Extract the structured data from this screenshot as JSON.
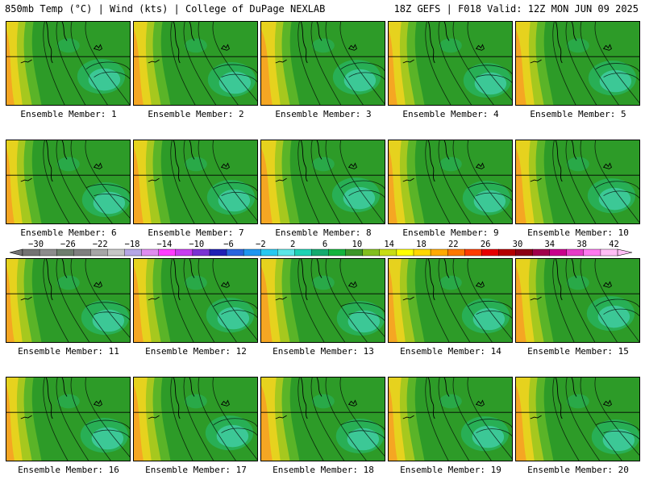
{
  "header": {
    "left": "850mb Temp (°C) | Wind (kts) | College of DuPage NEXLAB",
    "right": "18Z GEFS | F018 Valid: 12Z MON JUN 09 2025"
  },
  "members": [
    "Ensemble Member: 1",
    "Ensemble Member: 2",
    "Ensemble Member: 3",
    "Ensemble Member: 4",
    "Ensemble Member: 5",
    "Ensemble Member: 6",
    "Ensemble Member: 7",
    "Ensemble Member: 8",
    "Ensemble Member: 9",
    "Ensemble Member: 10",
    "Ensemble Member: 11",
    "Ensemble Member: 12",
    "Ensemble Member: 13",
    "Ensemble Member: 14",
    "Ensemble Member: 15",
    "Ensemble Member: 16",
    "Ensemble Member: 17",
    "Ensemble Member: 18",
    "Ensemble Member: 19",
    "Ensemble Member: 20"
  ],
  "colorbar": {
    "labels": [
      "-30",
      "-26",
      "-22",
      "-18",
      "-14",
      "-10",
      "-6",
      "-2",
      "2",
      "6",
      "10",
      "14",
      "18",
      "22",
      "26",
      "30",
      "34",
      "38",
      "42"
    ],
    "colors": [
      "#737373",
      "#8c8c8c",
      "#6e7e6e",
      "#7f7f7f",
      "#a6a6a6",
      "#c6c6c6",
      "#b5a6e6",
      "#e08cf0",
      "#ff3cff",
      "#c83cf0",
      "#7a32d2",
      "#2020b4",
      "#2864dc",
      "#1e96f0",
      "#28c8f0",
      "#5ae6e6",
      "#1ed2b4",
      "#14aa6e",
      "#14b43c",
      "#3c9628",
      "#82be1e",
      "#c8dc14",
      "#ffff00",
      "#ffd700",
      "#ffaa00",
      "#ff7800",
      "#ff3c00",
      "#e60000",
      "#b40000",
      "#8c0014",
      "#a0004b",
      "#c8008c",
      "#e63cc8",
      "#ff78f0",
      "#ffbef5"
    ]
  },
  "map_colors": {
    "warm": "#f5a623",
    "yellow": "#e6d21e",
    "yellow_green": "#a6c81e",
    "light_green": "#5ab428",
    "green": "#2d9b28",
    "mid_green": "#28af55",
    "cool": "#3cc896",
    "contour": "#000000"
  }
}
